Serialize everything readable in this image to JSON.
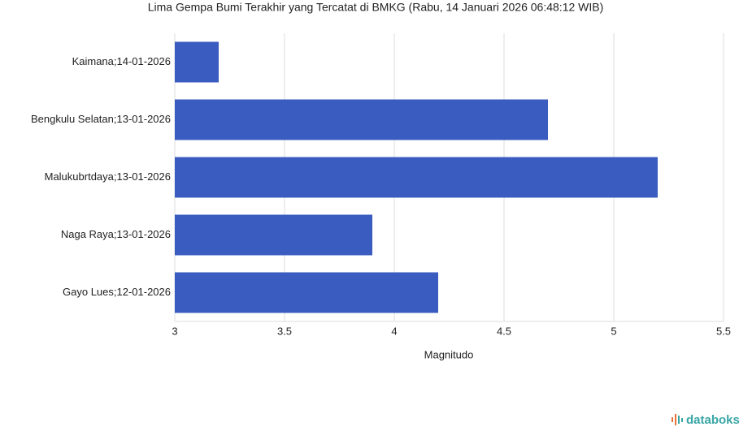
{
  "chart_data": {
    "type": "bar",
    "orientation": "horizontal",
    "title": "Lima Gempa Bumi Terakhir yang Tercatat di BMKG (Rabu, 14 Januari 2026 06:48:12 WIB)",
    "x_label": "Magnitudo",
    "categories": [
      "Kaimana;14-01-2026",
      "Bengkulu Selatan;13-01-2026",
      "Malukubrtdaya;13-01-2026",
      "Naga Raya;13-01-2026",
      "Gayo Lues;12-01-2026"
    ],
    "values": [
      3.2,
      4.7,
      5.2,
      3.9,
      4.2
    ],
    "color": "#3a5bbf",
    "xlim": [
      3,
      5.5
    ],
    "xticks": [
      3,
      3.5,
      4,
      4.5,
      5,
      5.5
    ],
    "grid": true
  },
  "brand": "databoks"
}
